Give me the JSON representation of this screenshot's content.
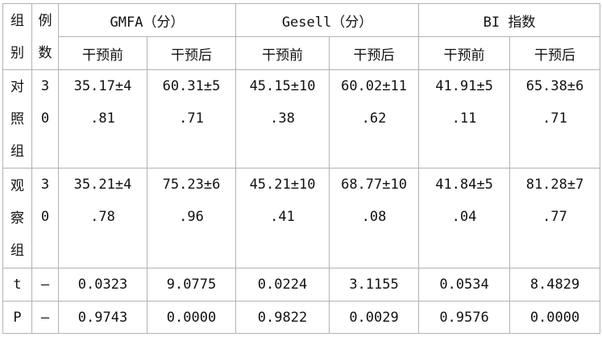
{
  "table": {
    "group_header": [
      "组",
      "别"
    ],
    "count_header": [
      "例",
      "数"
    ],
    "measures": [
      {
        "label": "GMFA（分）"
      },
      {
        "label": "Gesell（分）"
      },
      {
        "label": "BI 指数"
      }
    ],
    "sub_headers": [
      "干预前",
      "干预后",
      "干预前",
      "干预后",
      "干预前",
      "干预后"
    ],
    "rows": [
      {
        "group": [
          "对",
          "照",
          "组"
        ],
        "n": [
          "3",
          "0"
        ],
        "cells": [
          [
            "35.17±4",
            ".81"
          ],
          [
            "60.31±5",
            ".71"
          ],
          [
            "45.15±10",
            ".38"
          ],
          [
            "60.02±11",
            ".62"
          ],
          [
            "41.91±5",
            ".11"
          ],
          [
            "65.38±6",
            ".71"
          ]
        ]
      },
      {
        "group": [
          "观",
          "察",
          "组"
        ],
        "n": [
          "3",
          "0"
        ],
        "cells": [
          [
            "35.21±4",
            ".78"
          ],
          [
            "75.23±6",
            ".96"
          ],
          [
            "45.21±10",
            ".41"
          ],
          [
            "68.77±10",
            ".08"
          ],
          [
            "41.84±5",
            ".04"
          ],
          [
            "81.28±7",
            ".77"
          ]
        ]
      }
    ],
    "stats": [
      {
        "label": "t",
        "n": "–",
        "values": [
          "0.0323",
          "9.0775",
          "0.0224",
          "3.1155",
          "0.0534",
          "8.4829"
        ]
      },
      {
        "label": "P",
        "n": "–",
        "values": [
          "0.9743",
          "0.0000",
          "0.9822",
          "0.0029",
          "0.9576",
          "0.0000"
        ]
      }
    ]
  }
}
